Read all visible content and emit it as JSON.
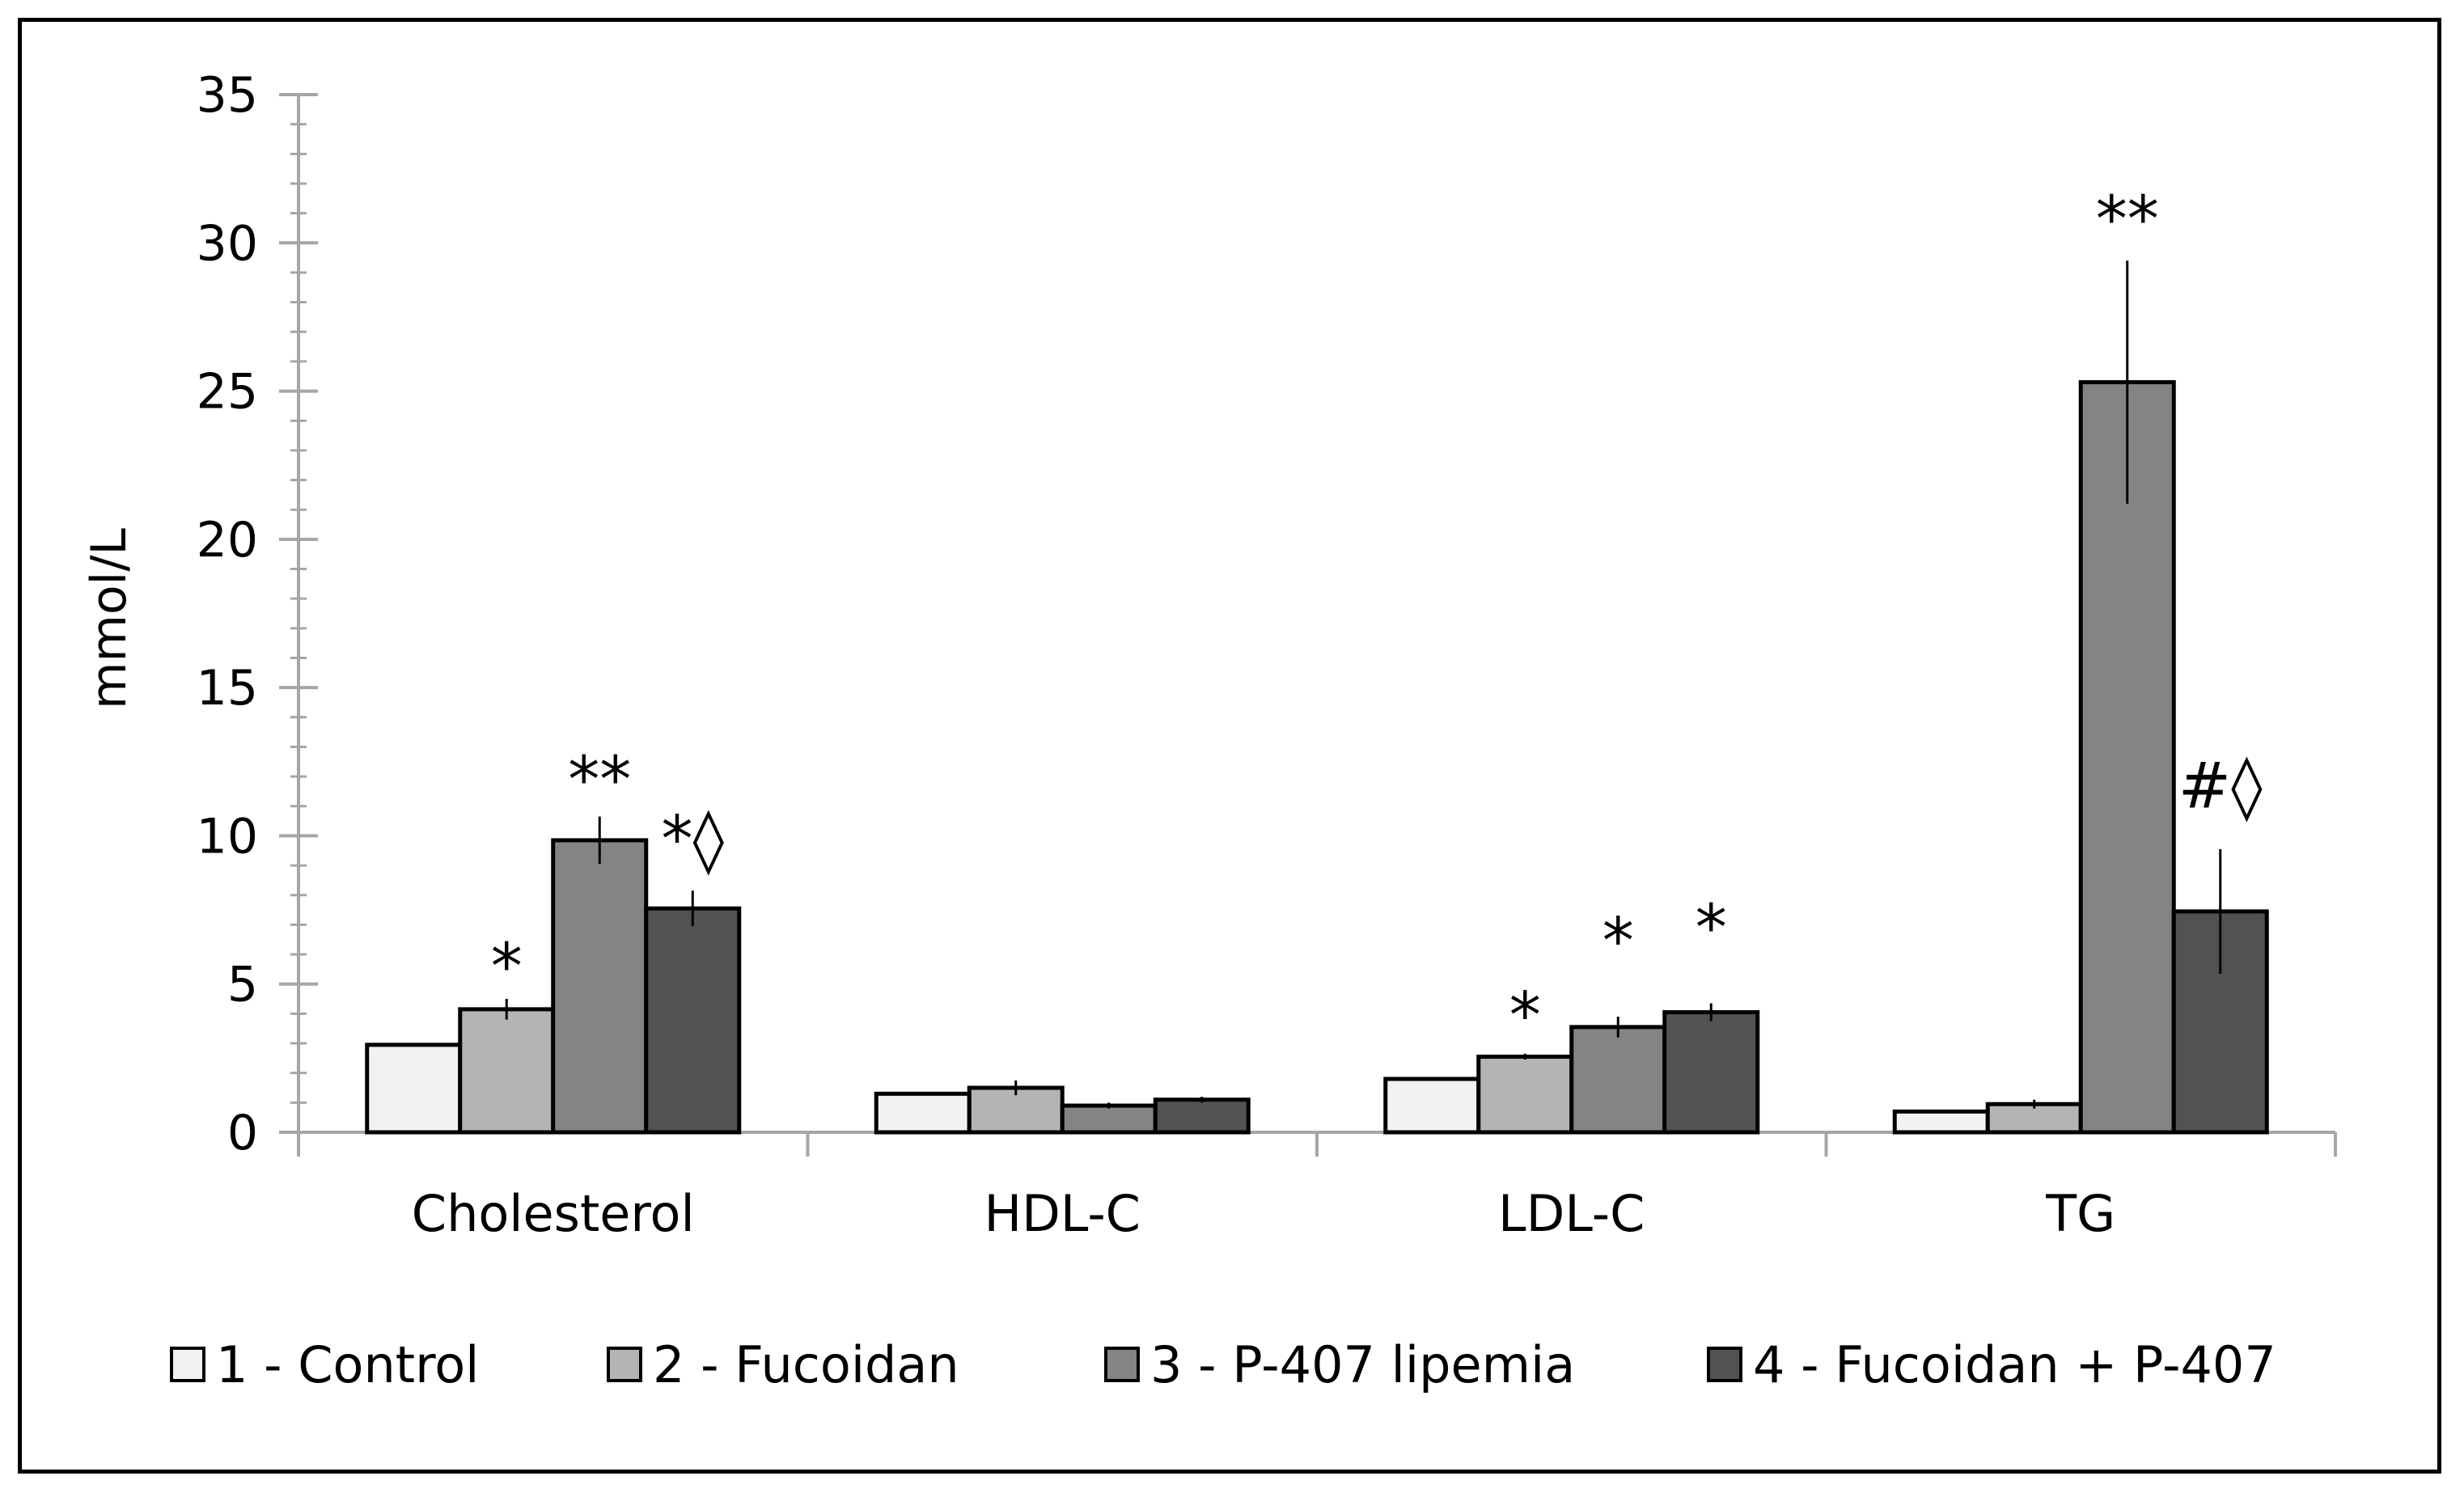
{
  "chart_data": {
    "type": "bar",
    "title": "",
    "xlabel": "",
    "ylabel": "mmol/L",
    "ylim": [
      0,
      35
    ],
    "yticks": [
      0,
      5,
      10,
      15,
      20,
      25,
      30,
      35
    ],
    "y_minor_step": 1,
    "grid": false,
    "legend_position": "bottom",
    "categories": [
      "Cholesterol",
      "HDL-C",
      "LDL-C",
      "TG"
    ],
    "series": [
      {
        "name": "1 - Control",
        "color": "#f2f2f2",
        "values": [
          2.95,
          1.3,
          1.8,
          0.7
        ],
        "errors": [
          0.05,
          0.05,
          0.05,
          0.05
        ]
      },
      {
        "name": "2 - Fucoidan",
        "color": "#b4b4b4",
        "values": [
          4.15,
          1.5,
          2.55,
          0.95
        ],
        "errors": [
          0.35,
          0.25,
          0.1,
          0.15
        ]
      },
      {
        "name": "3 - P-407 lipemia",
        "color": "#848484",
        "values": [
          9.85,
          0.9,
          3.55,
          25.3
        ],
        "errors": [
          0.8,
          0.1,
          0.35,
          4.1
        ]
      },
      {
        "name": "4 - Fucoidan + P-407",
        "color": "#525252",
        "values": [
          7.55,
          1.1,
          4.05,
          7.45
        ],
        "errors": [
          0.6,
          0.1,
          0.3,
          2.1
        ]
      }
    ],
    "annotations": [
      {
        "category": 0,
        "series": 1,
        "text": "*",
        "offset": 1.8
      },
      {
        "category": 0,
        "series": 2,
        "text": "**",
        "offset": 2.4
      },
      {
        "category": 0,
        "series": 3,
        "text": "*◊",
        "offset": 2.7
      },
      {
        "category": 2,
        "series": 1,
        "text": "*",
        "offset": 1.75
      },
      {
        "category": 2,
        "series": 2,
        "text": "*",
        "offset": 3.25
      },
      {
        "category": 2,
        "series": 3,
        "text": "*",
        "offset": 3.2
      },
      {
        "category": 3,
        "series": 2,
        "text": "**",
        "offset": 5.85
      },
      {
        "category": 3,
        "series": 3,
        "text": "#◊",
        "offset": 4.6
      }
    ]
  }
}
